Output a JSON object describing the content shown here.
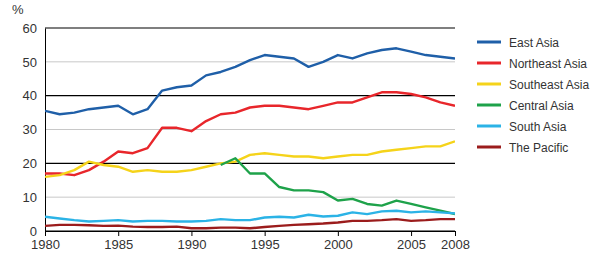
{
  "chart_data": {
    "type": "line",
    "y_label": "%",
    "x": [
      1980,
      1981,
      1982,
      1983,
      1984,
      1985,
      1986,
      1987,
      1988,
      1989,
      1990,
      1991,
      1992,
      1993,
      1994,
      1995,
      1996,
      1997,
      1998,
      1999,
      2000,
      2001,
      2002,
      2003,
      2004,
      2005,
      2006,
      2007,
      2008
    ],
    "series": [
      {
        "name": "East Asia",
        "color": "#1f5fa8",
        "values": [
          35.5,
          34.5,
          35,
          36,
          36.5,
          37,
          34.5,
          36,
          41.5,
          42.5,
          43,
          46,
          47,
          48.5,
          50.5,
          52,
          51.5,
          51,
          48.5,
          50,
          52,
          51,
          52.5,
          53.5,
          54,
          53,
          52,
          51.5,
          51
        ]
      },
      {
        "name": "Northeast Asia",
        "color": "#e8262b",
        "values": [
          17,
          17,
          16.5,
          18,
          20.5,
          23.5,
          23,
          24.5,
          30.5,
          30.5,
          29.5,
          32.5,
          34.5,
          35,
          36.5,
          37,
          37,
          36.5,
          36,
          37,
          38,
          38,
          39.5,
          41,
          41,
          40.5,
          39.5,
          38,
          37
        ]
      },
      {
        "name": "Southeast Asia",
        "color": "#f5d31a",
        "values": [
          16,
          16.5,
          18,
          20.5,
          19.5,
          19,
          17.5,
          18,
          17.5,
          17.5,
          18,
          19,
          20,
          20.5,
          22.5,
          23,
          22.5,
          22,
          22,
          21.5,
          22,
          22.5,
          22.5,
          23.5,
          24,
          24.5,
          25,
          25,
          26.5
        ]
      },
      {
        "name": "Central Asia",
        "color": "#1ea24a",
        "values": [
          null,
          null,
          null,
          null,
          null,
          null,
          null,
          null,
          null,
          null,
          null,
          null,
          19.5,
          21.5,
          17,
          17,
          13,
          12,
          12,
          11.5,
          9,
          9.5,
          8,
          7.5,
          9,
          8,
          7,
          6,
          5
        ]
      },
      {
        "name": "South Asia",
        "color": "#2bb3e6",
        "values": [
          4.2,
          3.7,
          3.2,
          2.8,
          3,
          3.2,
          2.8,
          3,
          3,
          2.8,
          2.8,
          3,
          3.5,
          3.2,
          3.2,
          4,
          4.2,
          4,
          4.8,
          4.3,
          4.5,
          5.5,
          5,
          5.8,
          6,
          5.5,
          5.8,
          5.5,
          5.2
        ]
      },
      {
        "name": "The Pacific",
        "color": "#9b1c1c",
        "values": [
          1.5,
          1.8,
          1.8,
          1.7,
          1.5,
          1.6,
          1.3,
          1.2,
          1.2,
          1.3,
          0.8,
          0.8,
          1,
          1,
          0.8,
          1.2,
          1.5,
          1.8,
          2,
          2.2,
          2.5,
          3,
          3,
          3.2,
          3.5,
          3,
          3.2,
          3.5,
          3.5
        ]
      }
    ],
    "xlim": [
      1980,
      2008
    ],
    "xticks": [
      1980,
      1985,
      1990,
      1995,
      2000,
      2005,
      2008
    ],
    "ylim": [
      0,
      60
    ],
    "yticks": [
      0,
      10,
      20,
      30,
      40,
      50,
      60
    ],
    "grid": true,
    "legend": "right"
  }
}
